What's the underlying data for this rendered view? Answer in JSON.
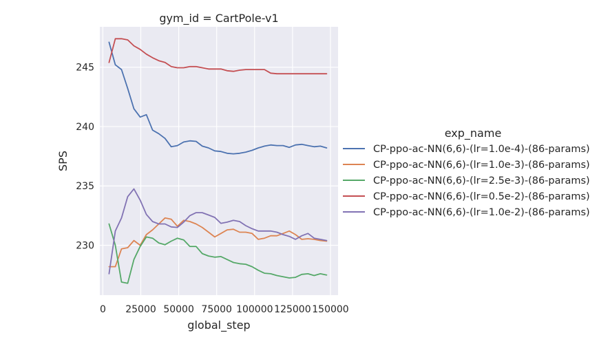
{
  "chart_data": {
    "type": "line",
    "title": "gym_id = CartPole-v1",
    "xlabel": "global_step",
    "ylabel": "SPS",
    "xlim": [
      -2000,
      155000
    ],
    "ylim": [
      225.8,
      248.4
    ],
    "xticks": [
      0,
      25000,
      50000,
      75000,
      100000,
      125000,
      150000
    ],
    "xtick_labels": [
      "0",
      "25000",
      "50000",
      "75000",
      "100000",
      "125000",
      "150000"
    ],
    "yticks": [
      230,
      235,
      240,
      245
    ],
    "ytick_labels": [
      "230",
      "235",
      "240",
      "245"
    ],
    "grid": true,
    "legend": {
      "title": "exp_name",
      "placement": "right"
    },
    "series": [
      {
        "name": "CP-ppo-ac-NN(6,6)-(lr=1.0e-4)-(86-params)",
        "color": "#4c72b0",
        "x": [
          4096,
          8192,
          12288,
          16384,
          20480,
          24576,
          28672,
          32768,
          36864,
          40960,
          45056,
          49152,
          53248,
          57344,
          61440,
          65536,
          69632,
          73728,
          77824,
          81920,
          86016,
          90112,
          94208,
          98304,
          102400,
          106496,
          110592,
          114688,
          118784,
          122880,
          126976,
          131072,
          135168,
          139264,
          143360,
          147456
        ],
        "values": [
          247.1,
          245.2,
          244.8,
          243.2,
          241.5,
          240.8,
          241.0,
          239.7,
          239.4,
          239.0,
          238.3,
          238.4,
          238.7,
          238.8,
          238.75,
          238.35,
          238.2,
          237.95,
          237.9,
          237.75,
          237.7,
          237.75,
          237.85,
          238.0,
          238.2,
          238.35,
          238.45,
          238.4,
          238.4,
          238.25,
          238.45,
          238.5,
          238.4,
          238.3,
          238.35,
          238.2
        ]
      },
      {
        "name": "CP-ppo-ac-NN(6,6)-(lr=1.0e-3)-(86-params)",
        "color": "#dd8452",
        "x": [
          4096,
          8192,
          12288,
          16384,
          20480,
          24576,
          28672,
          32768,
          36864,
          40960,
          45056,
          49152,
          53248,
          57344,
          61440,
          65536,
          69632,
          73728,
          77824,
          81920,
          86016,
          90112,
          94208,
          98304,
          102400,
          106496,
          110592,
          114688,
          118784,
          122880,
          126976,
          131072,
          135168,
          139264,
          143360,
          147456
        ],
        "values": [
          228.2,
          228.2,
          229.7,
          229.8,
          230.4,
          230.0,
          230.9,
          231.3,
          231.8,
          232.3,
          232.2,
          231.6,
          232.1,
          232.0,
          231.8,
          231.5,
          231.1,
          230.7,
          231.0,
          231.3,
          231.35,
          231.1,
          231.1,
          231.0,
          230.5,
          230.6,
          230.8,
          230.8,
          231.0,
          231.2,
          230.9,
          230.5,
          230.55,
          230.5,
          230.4,
          230.35
        ]
      },
      {
        "name": "CP-ppo-ac-NN(6,6)-(lr=2.5e-3)-(86-params)",
        "color": "#55a868",
        "x": [
          4096,
          8192,
          12288,
          16384,
          20480,
          24576,
          28672,
          32768,
          36864,
          40960,
          45056,
          49152,
          53248,
          57344,
          61440,
          65536,
          69632,
          73728,
          77824,
          81920,
          86016,
          90112,
          94208,
          98304,
          102400,
          106496,
          110592,
          114688,
          118784,
          122880,
          126976,
          131072,
          135168,
          139264,
          143360,
          147456
        ],
        "values": [
          231.8,
          230.0,
          226.9,
          226.8,
          228.8,
          229.9,
          230.7,
          230.6,
          230.2,
          230.05,
          230.35,
          230.6,
          230.45,
          229.9,
          229.9,
          229.3,
          229.1,
          229.0,
          229.05,
          228.8,
          228.55,
          228.45,
          228.4,
          228.2,
          227.9,
          227.65,
          227.6,
          227.45,
          227.35,
          227.25,
          227.3,
          227.55,
          227.6,
          227.45,
          227.6,
          227.5
        ]
      },
      {
        "name": "CP-ppo-ac-NN(6,6)-(lr=0.5e-2)-(86-params)",
        "color": "#c44e52",
        "x": [
          4096,
          8192,
          12288,
          16384,
          20480,
          24576,
          28672,
          32768,
          36864,
          40960,
          45056,
          49152,
          53248,
          57344,
          61440,
          65536,
          69632,
          73728,
          77824,
          81920,
          86016,
          90112,
          94208,
          98304,
          102400,
          106496,
          110592,
          114688,
          118784,
          122880,
          126976,
          131072,
          135168,
          139264,
          143360,
          147456
        ],
        "values": [
          245.4,
          247.4,
          247.4,
          247.3,
          246.8,
          246.5,
          246.1,
          245.8,
          245.55,
          245.4,
          245.05,
          244.95,
          244.95,
          245.05,
          245.05,
          244.95,
          244.85,
          244.85,
          244.85,
          244.7,
          244.65,
          244.75,
          244.8,
          244.8,
          244.8,
          244.8,
          244.5,
          244.45,
          244.45,
          244.45,
          244.45,
          244.45,
          244.45,
          244.45,
          244.45,
          244.45
        ]
      },
      {
        "name": "CP-ppo-ac-NN(6,6)-(lr=1.0e-2)-(86-params)",
        "color": "#8172b3",
        "x": [
          4096,
          8192,
          12288,
          16384,
          20480,
          24576,
          28672,
          32768,
          36864,
          40960,
          45056,
          49152,
          53248,
          57344,
          61440,
          65536,
          69632,
          73728,
          77824,
          81920,
          86016,
          90112,
          94208,
          98304,
          102400,
          106496,
          110592,
          114688,
          118784,
          122880,
          126976,
          131072,
          135168,
          139264,
          143360,
          147456
        ],
        "values": [
          227.6,
          231.2,
          232.3,
          234.1,
          234.75,
          233.8,
          232.6,
          232.0,
          231.8,
          231.8,
          231.55,
          231.5,
          231.95,
          232.5,
          232.75,
          232.75,
          232.55,
          232.35,
          231.85,
          231.95,
          232.1,
          232.0,
          231.65,
          231.4,
          231.2,
          231.2,
          231.2,
          231.1,
          230.9,
          230.75,
          230.5,
          230.8,
          231.0,
          230.6,
          230.5,
          230.4
        ]
      }
    ]
  }
}
